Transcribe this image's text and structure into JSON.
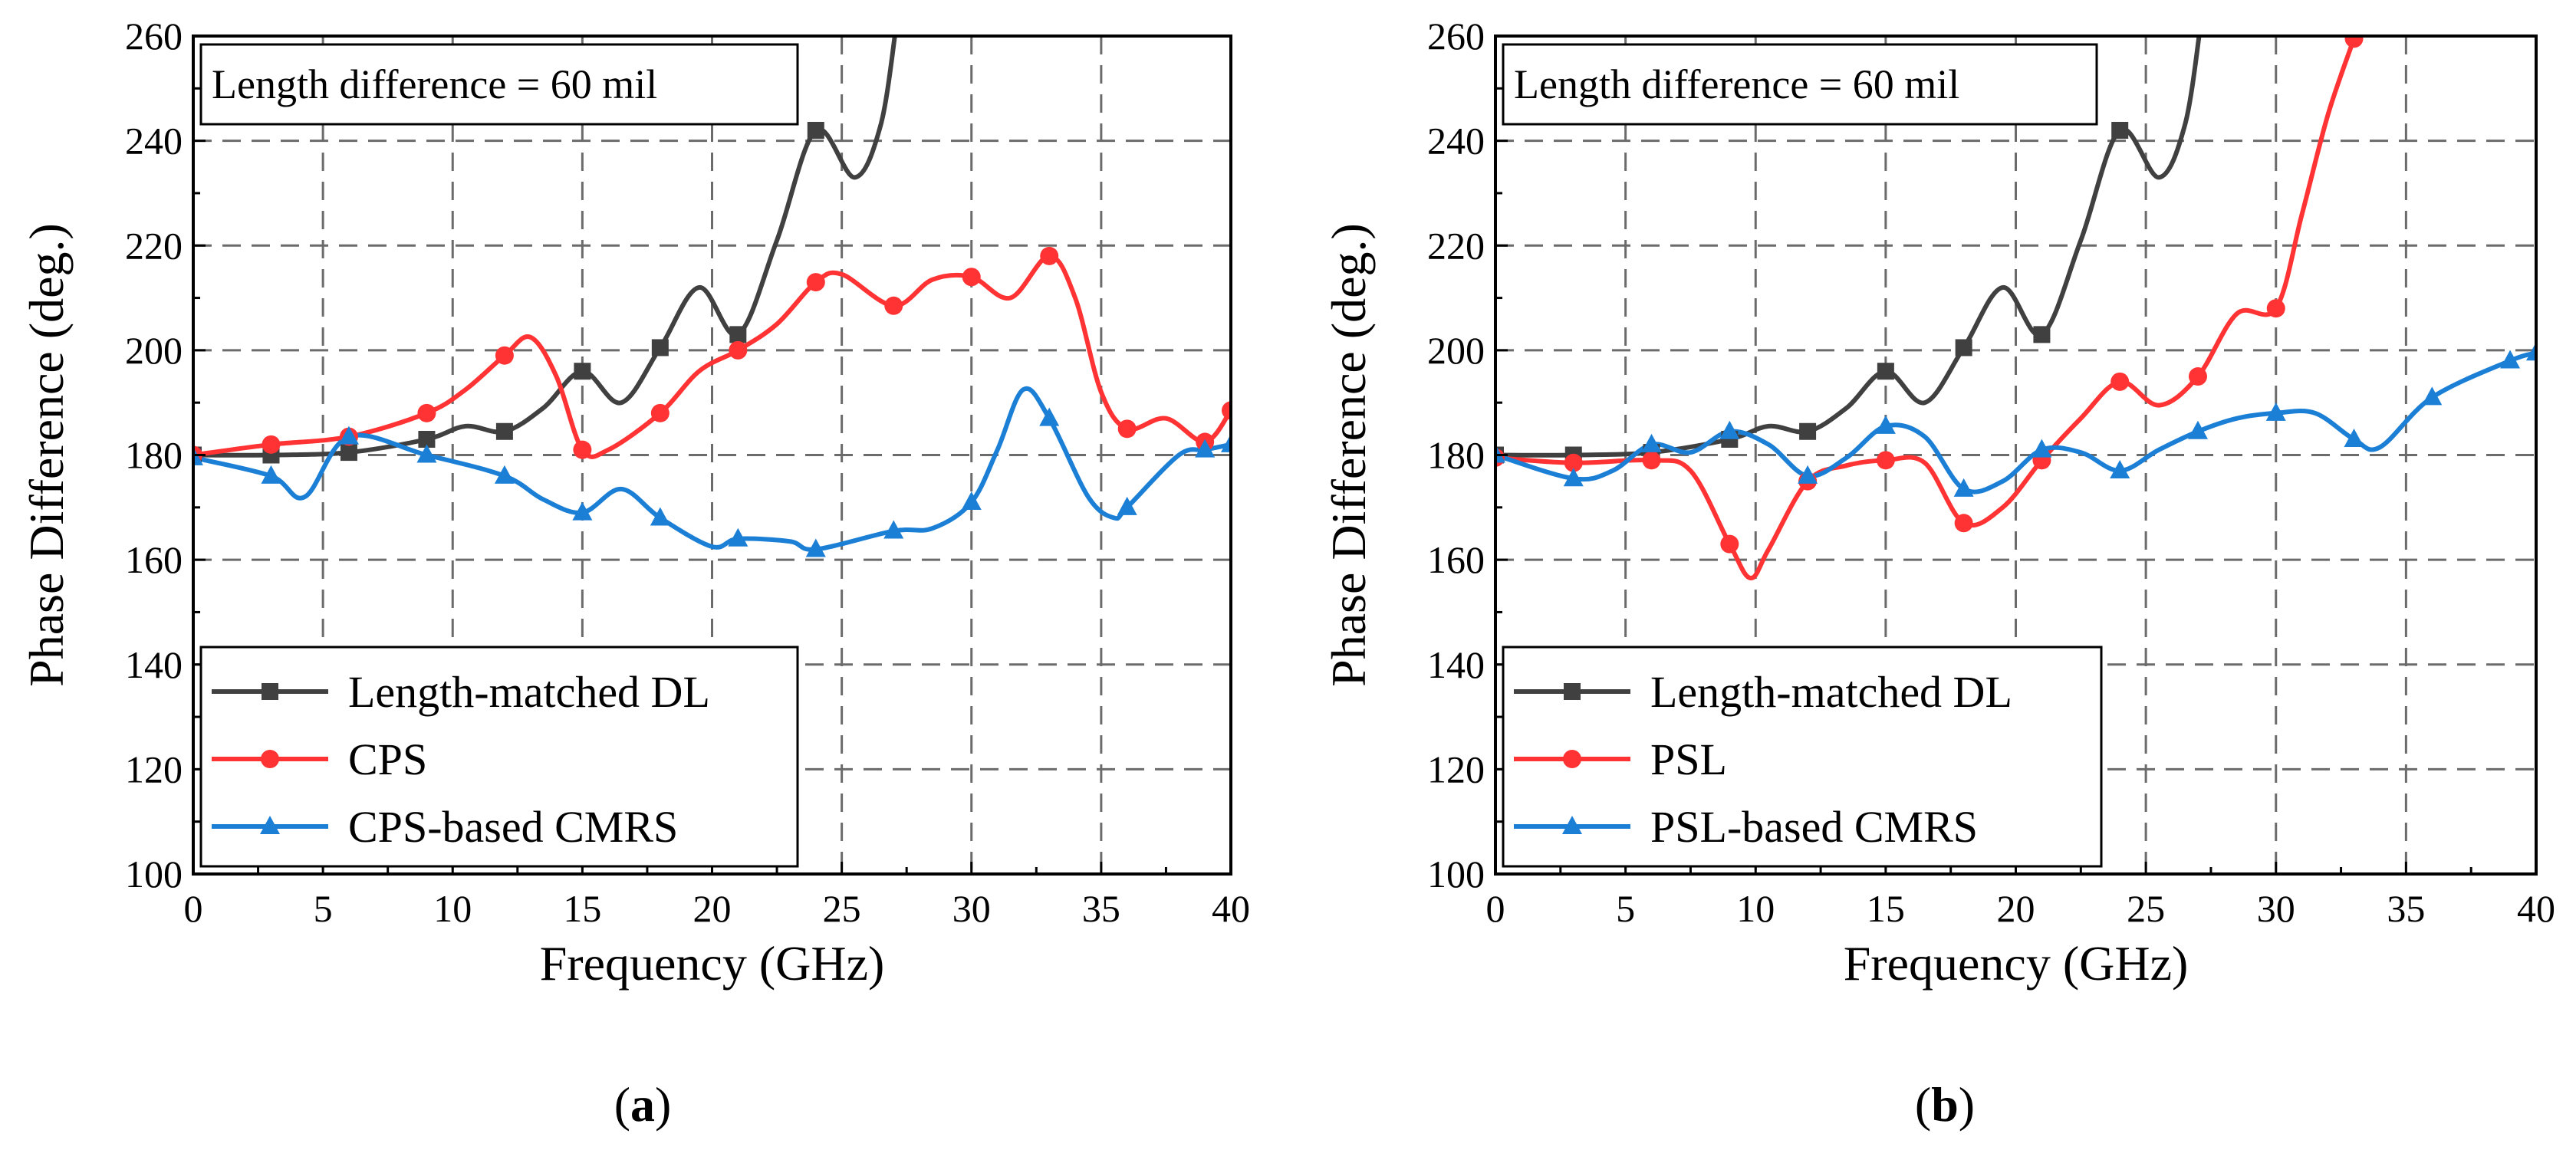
{
  "chart_data": [
    {
      "type": "line",
      "panel": "a",
      "caption_open": "(",
      "caption_letter": "a",
      "caption_close": ")",
      "annotation": "Length difference = 60 mil",
      "xlabel": "Frequency (GHz)",
      "ylabel": "Phase Difference (deg.)",
      "xlim": [
        0,
        40
      ],
      "ylim": [
        100,
        260
      ],
      "xticks": [
        0,
        5,
        10,
        15,
        20,
        25,
        30,
        35,
        40
      ],
      "yticks": [
        100,
        120,
        140,
        160,
        180,
        200,
        220,
        240,
        260
      ],
      "grid": true,
      "legend_position": "bottom-left",
      "series": [
        {
          "name": "Length-matched DL",
          "color": "#404040",
          "marker": "square",
          "x": [
            0,
            3,
            6,
            9,
            10.5,
            12,
            13.5,
            15,
            16.5,
            18,
            19.5,
            21,
            22.5,
            24,
            25.5,
            26.5,
            27.1
          ],
          "y": [
            180,
            180,
            180.5,
            183,
            185.5,
            184.5,
            189,
            196,
            190,
            200.5,
            212,
            203,
            221,
            242,
            233,
            243,
            262
          ],
          "marker_x": [
            0,
            3,
            6,
            9,
            12,
            15,
            18,
            21,
            24
          ],
          "marker_y": [
            180,
            180,
            180.5,
            183,
            184.5,
            196,
            200.5,
            203,
            242
          ]
        },
        {
          "name": "CPS",
          "color": "#ff3333",
          "marker": "circle",
          "x": [
            0,
            3,
            6,
            9,
            10.5,
            12,
            13,
            14,
            15,
            16,
            18,
            19.5,
            21,
            22.5,
            24,
            25,
            27,
            28.5,
            30,
            31.5,
            33,
            34,
            35,
            36,
            37.5,
            39,
            40
          ],
          "y": [
            180,
            182,
            183.5,
            188,
            192.5,
            199,
            202.5,
            195,
            181,
            181,
            188,
            196,
            200,
            205,
            213,
            214.5,
            208.5,
            213.5,
            214,
            210,
            218,
            210,
            192,
            185,
            187,
            182.5,
            188.5
          ],
          "marker_x": [
            0,
            3,
            6,
            9,
            12,
            15,
            18,
            21,
            24,
            27,
            30,
            33,
            36,
            39,
            40
          ],
          "marker_y": [
            180,
            182,
            183.5,
            188,
            199,
            181,
            188,
            200,
            213,
            208.5,
            214,
            218,
            185,
            182.5,
            188.5
          ]
        },
        {
          "name": "CPS-based CMRS",
          "color": "#1c7fd6",
          "marker": "triangle",
          "x": [
            0,
            3,
            4.3,
            6,
            9,
            12,
            13.5,
            15,
            16.5,
            18,
            20,
            21,
            23,
            24,
            27,
            28.5,
            30,
            31,
            32,
            33,
            34.5,
            35.5,
            36,
            38,
            39,
            40
          ],
          "y": [
            179.5,
            176,
            172,
            183.5,
            180,
            176,
            171.5,
            169,
            173.5,
            168,
            162.5,
            164,
            163.5,
            162,
            165.5,
            166,
            171,
            181,
            192.5,
            187,
            172,
            168,
            170,
            180,
            181,
            182
          ],
          "marker_x": [
            0,
            3,
            6,
            9,
            12,
            15,
            18,
            21,
            24,
            27,
            30,
            33,
            36,
            39,
            40
          ],
          "marker_y": [
            179.5,
            176,
            183.5,
            180,
            176,
            169,
            168,
            164,
            162,
            165.5,
            171,
            187,
            170,
            181,
            182
          ]
        }
      ]
    },
    {
      "type": "line",
      "panel": "b",
      "caption_open": "(",
      "caption_letter": "b",
      "caption_close": ")",
      "annotation": "Length difference = 60 mil",
      "xlabel": "Frequency (GHz)",
      "ylabel": "Phase Difference (deg.)",
      "xlim": [
        0,
        40
      ],
      "ylim": [
        100,
        260
      ],
      "xticks": [
        0,
        5,
        10,
        15,
        20,
        25,
        30,
        35,
        40
      ],
      "yticks": [
        100,
        120,
        140,
        160,
        180,
        200,
        220,
        240,
        260
      ],
      "grid": true,
      "legend_position": "bottom-left",
      "series": [
        {
          "name": "Length-matched DL",
          "color": "#404040",
          "marker": "square",
          "x": [
            0,
            3,
            6,
            9,
            10.5,
            12,
            13.5,
            15,
            16.5,
            18,
            19.5,
            21,
            22.5,
            24,
            25.5,
            26.5,
            27.1
          ],
          "y": [
            180,
            180,
            180.5,
            183,
            185.5,
            184.5,
            189,
            196,
            190,
            200.5,
            212,
            203,
            221,
            242,
            233,
            243,
            262
          ],
          "marker_x": [
            0,
            3,
            6,
            9,
            12,
            15,
            18,
            21,
            24
          ],
          "marker_y": [
            180,
            180,
            180.5,
            183,
            184.5,
            196,
            200.5,
            203,
            242
          ]
        },
        {
          "name": "PSL",
          "color": "#ff3333",
          "marker": "circle",
          "x": [
            0,
            3,
            6,
            7.5,
            9,
            9.8,
            10.5,
            12,
            13.5,
            15,
            16.5,
            18,
            19.5,
            21,
            22.5,
            24,
            25.5,
            27,
            28.5,
            30,
            31,
            32,
            33
          ],
          "y": [
            179.5,
            178.5,
            179,
            177,
            163,
            156.5,
            162,
            175,
            178,
            179,
            178.5,
            167,
            170,
            179,
            187,
            194,
            189.5,
            195,
            207,
            208,
            226,
            245,
            259.5
          ],
          "marker_x": [
            0,
            3,
            6,
            9,
            12,
            15,
            18,
            21,
            24,
            27,
            30,
            33
          ],
          "marker_y": [
            179.5,
            178.5,
            179,
            163,
            175,
            179,
            167,
            179,
            194,
            195,
            208,
            259.5
          ]
        },
        {
          "name": "PSL-based CMRS",
          "color": "#1c7fd6",
          "marker": "triangle",
          "x": [
            0,
            3,
            4.5,
            6,
            7.5,
            9,
            10.5,
            12,
            13.5,
            15,
            16.5,
            18,
            19.5,
            21,
            22.5,
            24,
            25.5,
            27,
            28.5,
            30,
            31.5,
            33,
            34,
            36,
            39,
            40
          ],
          "y": [
            180,
            175.5,
            177,
            182,
            180.5,
            184.5,
            182,
            176,
            179.5,
            185.5,
            183.5,
            173.5,
            175,
            181,
            180.5,
            177,
            181,
            184.5,
            187,
            188,
            188,
            183,
            181.5,
            191,
            198,
            199.5
          ],
          "marker_x": [
            0,
            3,
            6,
            9,
            12,
            15,
            18,
            21,
            24,
            27,
            30,
            33,
            36,
            39,
            40
          ],
          "marker_y": [
            180,
            175.5,
            182,
            184.5,
            176,
            185.5,
            173.5,
            181,
            177,
            184.5,
            188,
            183,
            191,
            198,
            199.5
          ]
        }
      ]
    }
  ]
}
